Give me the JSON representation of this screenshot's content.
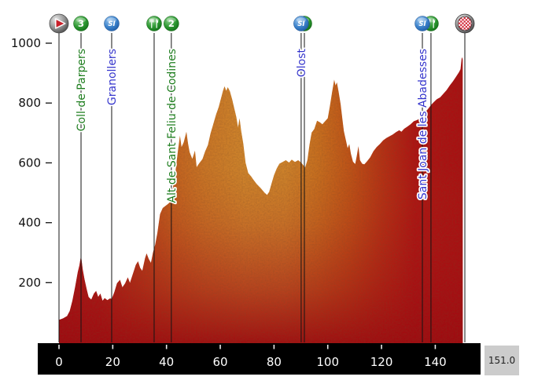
{
  "meta": {
    "total_km_label": "151.0"
  },
  "colors": {
    "profile_red": "#ab0f15",
    "profile_orange": "#d0862c",
    "label_green": "#1e7d1e",
    "label_blue": "#3434cc",
    "axis_bar": "#000000",
    "marker_line": "#141414",
    "distance_box_bg": "#cccccc",
    "checker_red": "#d02030"
  },
  "icons": {
    "cat3": "3",
    "cat2": "2",
    "sprint": "SI",
    "feed": "",
    "start": "",
    "finish": ""
  },
  "chart_data": {
    "type": "area",
    "title": "",
    "xlabel": "",
    "ylabel": "",
    "x_unit": "km",
    "y_unit": "m",
    "x_range_km": [
      0,
      156
    ],
    "y_range_m": [
      0,
      1000
    ],
    "grid": false,
    "x_ticks": [
      0,
      20,
      40,
      60,
      80,
      100,
      120,
      140
    ],
    "y_ticks": [
      200,
      400,
      600,
      800,
      1000
    ],
    "total_distance_km": 151.0,
    "markers": [
      {
        "name": "start",
        "kms": [
          0
        ],
        "icons": [
          "start"
        ],
        "label": "",
        "label_color": ""
      },
      {
        "name": "coll-de-parpers",
        "kms": [
          8.2
        ],
        "icons": [
          "cat3"
        ],
        "label": "Coll de Parpers",
        "label_color": "#1e7d1e"
      },
      {
        "name": "granollers",
        "kms": [
          19.6
        ],
        "icons": [
          "sprint"
        ],
        "label": "Granollers",
        "label_color": "#3434cc"
      },
      {
        "name": "feed-zone-1",
        "kms": [
          35.4
        ],
        "icons": [
          "feed"
        ],
        "label": "",
        "label_color": ""
      },
      {
        "name": "alt-de-sant-feliu-de-codines",
        "kms": [
          41.8
        ],
        "icons": [
          "cat2"
        ],
        "label": "Alt de Sant Feliu de Codines",
        "label_color": "#1e7d1e"
      },
      {
        "name": "olost",
        "kms": [
          90.1,
          91.3
        ],
        "icons": [
          "sprint",
          "feed"
        ],
        "label": "Olost",
        "label_color": "#3434cc"
      },
      {
        "name": "sant-joan-de-les-abadesses",
        "kms": [
          135.2,
          138.4
        ],
        "icons": [
          "sprint",
          "feed"
        ],
        "label": "Sant Joan de les Abadesses",
        "label_color": "#3434cc"
      },
      {
        "name": "finish",
        "kms": [
          151
        ],
        "icons": [
          "finish"
        ],
        "label": "",
        "label_color": ""
      }
    ],
    "profile": [
      [
        0,
        75
      ],
      [
        1.5,
        80
      ],
      [
        3,
        88
      ],
      [
        4,
        105
      ],
      [
        5,
        140
      ],
      [
        6,
        185
      ],
      [
        7,
        235
      ],
      [
        7.6,
        258
      ],
      [
        8.2,
        290
      ],
      [
        8.8,
        245
      ],
      [
        9.5,
        210
      ],
      [
        10.3,
        178
      ],
      [
        11,
        152
      ],
      [
        12,
        143
      ],
      [
        13,
        163
      ],
      [
        13.8,
        172
      ],
      [
        14.6,
        152
      ],
      [
        15.4,
        163
      ],
      [
        16.2,
        139
      ],
      [
        17,
        148
      ],
      [
        18,
        141
      ],
      [
        19,
        147
      ],
      [
        19.6,
        145
      ],
      [
        20.6,
        168
      ],
      [
        21.6,
        198
      ],
      [
        22.7,
        209
      ],
      [
        23.6,
        184
      ],
      [
        24.6,
        197
      ],
      [
        25.6,
        217
      ],
      [
        26.4,
        199
      ],
      [
        27.4,
        226
      ],
      [
        28.6,
        259
      ],
      [
        29.4,
        271
      ],
      [
        30.2,
        249
      ],
      [
        31,
        239
      ],
      [
        32,
        281
      ],
      [
        32.6,
        297
      ],
      [
        33.4,
        279
      ],
      [
        34.2,
        266
      ],
      [
        35,
        301
      ],
      [
        35.8,
        326
      ],
      [
        36.6,
        366
      ],
      [
        37.6,
        429
      ],
      [
        38.6,
        449
      ],
      [
        39.6,
        456
      ],
      [
        40.6,
        463
      ],
      [
        41.8,
        473
      ],
      [
        42.6,
        531
      ],
      [
        43.4,
        575
      ],
      [
        44.2,
        636
      ],
      [
        45,
        691
      ],
      [
        45.6,
        653
      ],
      [
        46.4,
        669
      ],
      [
        47.4,
        704
      ],
      [
        48,
        666
      ],
      [
        48.6,
        636
      ],
      [
        49.6,
        613
      ],
      [
        50.6,
        641
      ],
      [
        51.2,
        586
      ],
      [
        52.2,
        599
      ],
      [
        53.4,
        613
      ],
      [
        54.4,
        639
      ],
      [
        55.4,
        659
      ],
      [
        56.4,
        699
      ],
      [
        57.4,
        729
      ],
      [
        58.4,
        761
      ],
      [
        59.4,
        786
      ],
      [
        60.2,
        813
      ],
      [
        61,
        841
      ],
      [
        61.6,
        856
      ],
      [
        62.2,
        841
      ],
      [
        62.8,
        853
      ],
      [
        63.6,
        839
      ],
      [
        64.4,
        813
      ],
      [
        65.2,
        783
      ],
      [
        66,
        753
      ],
      [
        66.6,
        719
      ],
      [
        67.2,
        749
      ],
      [
        67.8,
        706
      ],
      [
        68.6,
        663
      ],
      [
        69.4,
        601
      ],
      [
        70.4,
        566
      ],
      [
        71.4,
        556
      ],
      [
        72.4,
        543
      ],
      [
        73.6,
        529
      ],
      [
        75,
        516
      ],
      [
        76.4,
        501
      ],
      [
        77.4,
        493
      ],
      [
        78.2,
        503
      ],
      [
        79,
        529
      ],
      [
        80,
        559
      ],
      [
        81,
        581
      ],
      [
        82,
        597
      ],
      [
        83.2,
        603
      ],
      [
        84.4,
        609
      ],
      [
        85.6,
        601
      ],
      [
        86.6,
        611
      ],
      [
        87.8,
        603
      ],
      [
        89,
        609
      ],
      [
        90.1,
        601
      ],
      [
        91,
        591
      ],
      [
        91.6,
        585
      ],
      [
        92.4,
        609
      ],
      [
        93.2,
        661
      ],
      [
        94,
        701
      ],
      [
        95,
        713
      ],
      [
        96,
        741
      ],
      [
        97,
        736
      ],
      [
        98,
        729
      ],
      [
        99,
        739
      ],
      [
        100,
        749
      ],
      [
        100.8,
        791
      ],
      [
        101.6,
        836
      ],
      [
        102.4,
        878
      ],
      [
        102.9,
        859
      ],
      [
        103.4,
        869
      ],
      [
        104,
        839
      ],
      [
        104.8,
        796
      ],
      [
        105.4,
        749
      ],
      [
        106,
        706
      ],
      [
        106.8,
        673
      ],
      [
        107.4,
        649
      ],
      [
        108,
        663
      ],
      [
        108.6,
        631
      ],
      [
        109.4,
        604
      ],
      [
        110.2,
        596
      ],
      [
        110.8,
        623
      ],
      [
        111.4,
        656
      ],
      [
        112,
        609
      ],
      [
        112.8,
        597
      ],
      [
        113.6,
        595
      ],
      [
        114.6,
        605
      ],
      [
        115.8,
        619
      ],
      [
        117,
        639
      ],
      [
        118.2,
        653
      ],
      [
        119.4,
        663
      ],
      [
        120.6,
        675
      ],
      [
        121.8,
        683
      ],
      [
        123,
        689
      ],
      [
        124.2,
        695
      ],
      [
        125.4,
        703
      ],
      [
        126.6,
        709
      ],
      [
        127.4,
        704
      ],
      [
        128.4,
        714
      ],
      [
        129.6,
        721
      ],
      [
        130.8,
        729
      ],
      [
        132,
        739
      ],
      [
        133.2,
        743
      ],
      [
        134.2,
        748
      ],
      [
        135.2,
        753
      ],
      [
        136.2,
        769
      ],
      [
        137.2,
        779
      ],
      [
        138.4,
        793
      ],
      [
        139.4,
        803
      ],
      [
        140.6,
        813
      ],
      [
        141.8,
        819
      ],
      [
        143,
        831
      ],
      [
        144.2,
        843
      ],
      [
        145.4,
        859
      ],
      [
        146.6,
        873
      ],
      [
        147.8,
        889
      ],
      [
        148.8,
        903
      ],
      [
        149.4,
        913
      ],
      [
        149.8,
        948
      ],
      [
        150,
        953
      ],
      [
        150.2,
        945
      ]
    ]
  }
}
